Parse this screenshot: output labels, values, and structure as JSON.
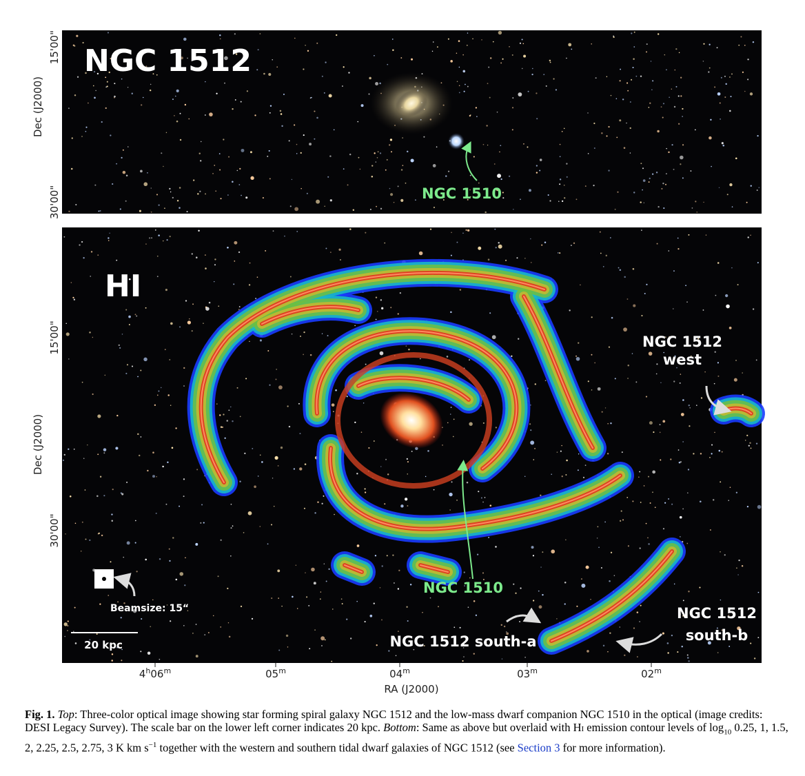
{
  "figure": {
    "top_panel": {
      "label": "NGC 1512",
      "companion": "NGC 1510",
      "y_axis_label": "Dec (J2000)",
      "y_ticks": [
        "15'00\"",
        "30'00\""
      ]
    },
    "bottom_panel": {
      "label": "HI",
      "west": [
        "NGC 1512",
        "west"
      ],
      "companion": "NGC 1510",
      "beamsize": "Beamsize: 15“",
      "scale_bar": "20 kpc",
      "south_a": "NGC 1512 south-a",
      "south_b": [
        "NGC 1512",
        "south-b"
      ],
      "y_axis_label": "Dec (J2000)",
      "y_ticks": [
        "15'00\"",
        "30'00\""
      ]
    },
    "x_axis_label": "RA (J2000)",
    "x_ticks": [
      [
        "4",
        "h",
        "06",
        "m"
      ],
      [
        "05",
        "m"
      ],
      [
        "04",
        "m"
      ],
      [
        "03",
        "m"
      ],
      [
        "02",
        "m"
      ]
    ]
  },
  "caption": [
    {
      "text": "Fig. 1.",
      "style": "bold"
    },
    {
      "text": " ",
      "style": "normal"
    },
    {
      "text": "Top",
      "style": "italic"
    },
    {
      "text": ": Three-color optical image showing star forming spiral galaxy NGC 1512 and the low-mass dwarf companion NGC 1510 in the optical (image credits: DESI Legacy Survey). The scale bar on the lower left corner indicates 20 kpc. ",
      "style": "normal"
    },
    {
      "text": "Bottom",
      "style": "italic"
    },
    {
      "text": ": Same as above but overlaid with H",
      "style": "normal"
    },
    {
      "text": "I",
      "style": "smallcaps"
    },
    {
      "text": " emission contour levels of log",
      "style": "normal"
    },
    {
      "text": "10",
      "style": "sub"
    },
    {
      "text": " 0.25, 1, 1.5, 2, 2.25, 2.5, 2.75, 3 K km s",
      "style": "normal"
    },
    {
      "text": "−1",
      "style": "sup"
    },
    {
      "text": " together with the western and southern tidal dwarf galaxies of NGC 1512 (see ",
      "style": "normal"
    },
    {
      "text": "Section 3",
      "style": "link"
    },
    {
      "text": " for more information).",
      "style": "normal"
    }
  ]
}
